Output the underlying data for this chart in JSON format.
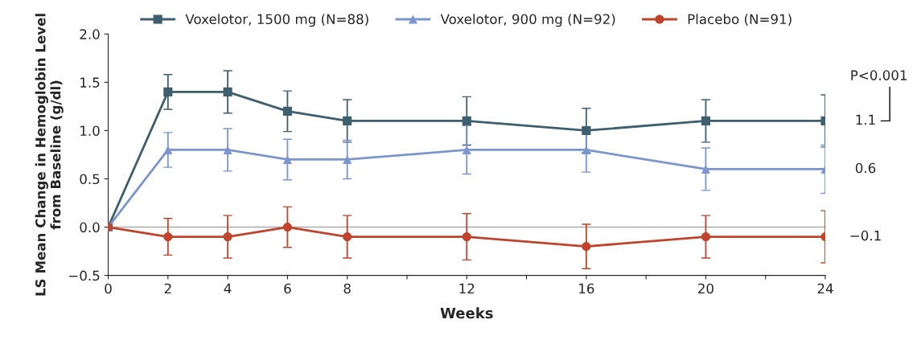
{
  "chart_data": {
    "type": "line",
    "xlabel": "Weeks",
    "ylabel": "LS Mean Change in Hemoglobin Level\nfrom Baseline (g/dl)",
    "x": [
      0,
      2,
      4,
      6,
      8,
      12,
      16,
      20,
      24
    ],
    "series": [
      {
        "name": "Voxelotor, 1500 mg (N=88)",
        "color": "#3d5f6e",
        "marker": "square",
        "values": [
          0,
          1.4,
          1.4,
          1.2,
          1.1,
          1.1,
          1.0,
          1.1,
          1.1
        ],
        "errors": [
          null,
          0.18,
          0.22,
          0.21,
          0.22,
          0.25,
          0.23,
          0.22,
          0.27
        ]
      },
      {
        "name": "Voxelotor, 900 mg (N=92)",
        "color": "#7b95cf",
        "marker": "triangle",
        "values": [
          0,
          0.8,
          0.8,
          0.7,
          0.7,
          0.8,
          0.8,
          0.6,
          0.6
        ],
        "errors": [
          null,
          0.18,
          0.22,
          0.21,
          0.2,
          0.25,
          0.23,
          0.22,
          0.25
        ]
      },
      {
        "name": "Placebo (N=91)",
        "color": "#c0432b",
        "marker": "circle",
        "values": [
          0,
          -0.1,
          -0.1,
          0,
          -0.1,
          -0.1,
          -0.2,
          -0.1,
          -0.1
        ],
        "errors": [
          null,
          0.19,
          0.22,
          0.21,
          0.22,
          0.24,
          0.23,
          0.22,
          0.27
        ]
      }
    ],
    "xlim": [
      0,
      24
    ],
    "ylim": [
      -0.5,
      2.0
    ],
    "xticks": [
      0,
      2,
      4,
      6,
      8,
      {
        "value": 10,
        "label": null
      },
      12,
      {
        "value": 14,
        "label": null
      },
      16,
      {
        "value": 18,
        "label": null
      },
      20,
      {
        "value": 22,
        "label": null
      },
      24
    ],
    "yticks": [
      {
        "value": -0.5,
        "label": "−0.5"
      },
      {
        "value": 0,
        "label": "0.0"
      },
      0.5,
      {
        "value": 1,
        "label": "1.0"
      },
      1.5,
      {
        "value": 2,
        "label": "2.0"
      }
    ],
    "ref_lines": [
      {
        "axis": "y",
        "value": 0,
        "color": "#aaaaaa"
      }
    ],
    "annotations": [
      "P<0.001",
      "1.1",
      "0.6",
      "−0.1"
    ],
    "legend": "top",
    "grid": false,
    "line_style": "solid"
  }
}
